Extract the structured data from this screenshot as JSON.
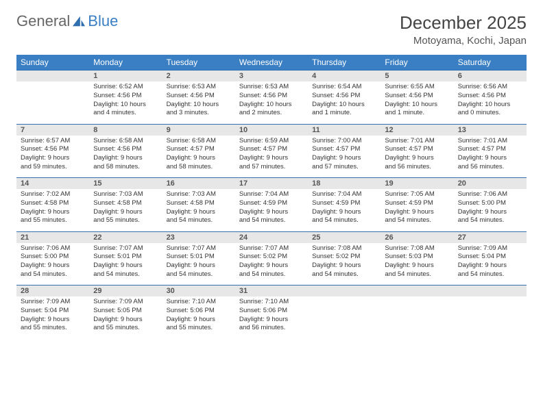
{
  "brand": {
    "part1": "General",
    "part2": "Blue"
  },
  "title": "December 2025",
  "location": "Motoyama, Kochi, Japan",
  "colors": {
    "headerBg": "#3a7fc4",
    "numRowBg": "#e7e7e7",
    "numRowBorder": "#2f6faf"
  },
  "dayNames": [
    "Sunday",
    "Monday",
    "Tuesday",
    "Wednesday",
    "Thursday",
    "Friday",
    "Saturday"
  ],
  "weeks": [
    {
      "nums": [
        "",
        "1",
        "2",
        "3",
        "4",
        "5",
        "6"
      ],
      "cells": [
        null,
        {
          "sr": "Sunrise: 6:52 AM",
          "ss": "Sunset: 4:56 PM",
          "d1": "Daylight: 10 hours",
          "d2": "and 4 minutes."
        },
        {
          "sr": "Sunrise: 6:53 AM",
          "ss": "Sunset: 4:56 PM",
          "d1": "Daylight: 10 hours",
          "d2": "and 3 minutes."
        },
        {
          "sr": "Sunrise: 6:53 AM",
          "ss": "Sunset: 4:56 PM",
          "d1": "Daylight: 10 hours",
          "d2": "and 2 minutes."
        },
        {
          "sr": "Sunrise: 6:54 AM",
          "ss": "Sunset: 4:56 PM",
          "d1": "Daylight: 10 hours",
          "d2": "and 1 minute."
        },
        {
          "sr": "Sunrise: 6:55 AM",
          "ss": "Sunset: 4:56 PM",
          "d1": "Daylight: 10 hours",
          "d2": "and 1 minute."
        },
        {
          "sr": "Sunrise: 6:56 AM",
          "ss": "Sunset: 4:56 PM",
          "d1": "Daylight: 10 hours",
          "d2": "and 0 minutes."
        }
      ]
    },
    {
      "nums": [
        "7",
        "8",
        "9",
        "10",
        "11",
        "12",
        "13"
      ],
      "cells": [
        {
          "sr": "Sunrise: 6:57 AM",
          "ss": "Sunset: 4:56 PM",
          "d1": "Daylight: 9 hours",
          "d2": "and 59 minutes."
        },
        {
          "sr": "Sunrise: 6:58 AM",
          "ss": "Sunset: 4:56 PM",
          "d1": "Daylight: 9 hours",
          "d2": "and 58 minutes."
        },
        {
          "sr": "Sunrise: 6:58 AM",
          "ss": "Sunset: 4:57 PM",
          "d1": "Daylight: 9 hours",
          "d2": "and 58 minutes."
        },
        {
          "sr": "Sunrise: 6:59 AM",
          "ss": "Sunset: 4:57 PM",
          "d1": "Daylight: 9 hours",
          "d2": "and 57 minutes."
        },
        {
          "sr": "Sunrise: 7:00 AM",
          "ss": "Sunset: 4:57 PM",
          "d1": "Daylight: 9 hours",
          "d2": "and 57 minutes."
        },
        {
          "sr": "Sunrise: 7:01 AM",
          "ss": "Sunset: 4:57 PM",
          "d1": "Daylight: 9 hours",
          "d2": "and 56 minutes."
        },
        {
          "sr": "Sunrise: 7:01 AM",
          "ss": "Sunset: 4:57 PM",
          "d1": "Daylight: 9 hours",
          "d2": "and 56 minutes."
        }
      ]
    },
    {
      "nums": [
        "14",
        "15",
        "16",
        "17",
        "18",
        "19",
        "20"
      ],
      "cells": [
        {
          "sr": "Sunrise: 7:02 AM",
          "ss": "Sunset: 4:58 PM",
          "d1": "Daylight: 9 hours",
          "d2": "and 55 minutes."
        },
        {
          "sr": "Sunrise: 7:03 AM",
          "ss": "Sunset: 4:58 PM",
          "d1": "Daylight: 9 hours",
          "d2": "and 55 minutes."
        },
        {
          "sr": "Sunrise: 7:03 AM",
          "ss": "Sunset: 4:58 PM",
          "d1": "Daylight: 9 hours",
          "d2": "and 54 minutes."
        },
        {
          "sr": "Sunrise: 7:04 AM",
          "ss": "Sunset: 4:59 PM",
          "d1": "Daylight: 9 hours",
          "d2": "and 54 minutes."
        },
        {
          "sr": "Sunrise: 7:04 AM",
          "ss": "Sunset: 4:59 PM",
          "d1": "Daylight: 9 hours",
          "d2": "and 54 minutes."
        },
        {
          "sr": "Sunrise: 7:05 AM",
          "ss": "Sunset: 4:59 PM",
          "d1": "Daylight: 9 hours",
          "d2": "and 54 minutes."
        },
        {
          "sr": "Sunrise: 7:06 AM",
          "ss": "Sunset: 5:00 PM",
          "d1": "Daylight: 9 hours",
          "d2": "and 54 minutes."
        }
      ]
    },
    {
      "nums": [
        "21",
        "22",
        "23",
        "24",
        "25",
        "26",
        "27"
      ],
      "cells": [
        {
          "sr": "Sunrise: 7:06 AM",
          "ss": "Sunset: 5:00 PM",
          "d1": "Daylight: 9 hours",
          "d2": "and 54 minutes."
        },
        {
          "sr": "Sunrise: 7:07 AM",
          "ss": "Sunset: 5:01 PM",
          "d1": "Daylight: 9 hours",
          "d2": "and 54 minutes."
        },
        {
          "sr": "Sunrise: 7:07 AM",
          "ss": "Sunset: 5:01 PM",
          "d1": "Daylight: 9 hours",
          "d2": "and 54 minutes."
        },
        {
          "sr": "Sunrise: 7:07 AM",
          "ss": "Sunset: 5:02 PM",
          "d1": "Daylight: 9 hours",
          "d2": "and 54 minutes."
        },
        {
          "sr": "Sunrise: 7:08 AM",
          "ss": "Sunset: 5:02 PM",
          "d1": "Daylight: 9 hours",
          "d2": "and 54 minutes."
        },
        {
          "sr": "Sunrise: 7:08 AM",
          "ss": "Sunset: 5:03 PM",
          "d1": "Daylight: 9 hours",
          "d2": "and 54 minutes."
        },
        {
          "sr": "Sunrise: 7:09 AM",
          "ss": "Sunset: 5:04 PM",
          "d1": "Daylight: 9 hours",
          "d2": "and 54 minutes."
        }
      ]
    },
    {
      "nums": [
        "28",
        "29",
        "30",
        "31",
        "",
        "",
        ""
      ],
      "cells": [
        {
          "sr": "Sunrise: 7:09 AM",
          "ss": "Sunset: 5:04 PM",
          "d1": "Daylight: 9 hours",
          "d2": "and 55 minutes."
        },
        {
          "sr": "Sunrise: 7:09 AM",
          "ss": "Sunset: 5:05 PM",
          "d1": "Daylight: 9 hours",
          "d2": "and 55 minutes."
        },
        {
          "sr": "Sunrise: 7:10 AM",
          "ss": "Sunset: 5:06 PM",
          "d1": "Daylight: 9 hours",
          "d2": "and 55 minutes."
        },
        {
          "sr": "Sunrise: 7:10 AM",
          "ss": "Sunset: 5:06 PM",
          "d1": "Daylight: 9 hours",
          "d2": "and 56 minutes."
        },
        null,
        null,
        null
      ]
    }
  ]
}
